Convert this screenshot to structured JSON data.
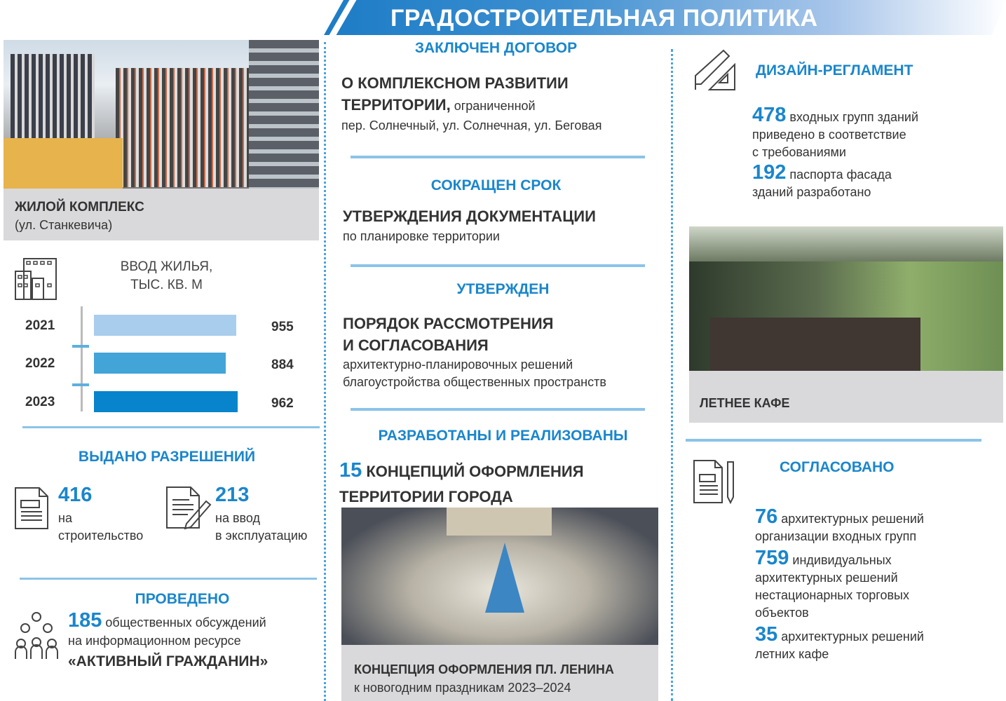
{
  "header": {
    "title": "ГРАДОСТРОИТЕЛЬНАЯ ПОЛИТИКА"
  },
  "colors": {
    "accent": "#1a86cc",
    "bar2021": "#a9cdec",
    "bar2022": "#43a4d8",
    "bar2023": "#0784cb"
  },
  "left": {
    "photo_caption": {
      "title": "ЖИЛОЙ КОМПЛЕКС",
      "subtitle": "(ул. Станкевича)"
    },
    "permits": {
      "heading": "ВЫДАНО РАЗРЕШЕНИЙ",
      "items": [
        {
          "value": "416",
          "line1": "на",
          "line2": "строительство",
          "icon": "document-icon"
        },
        {
          "value": "213",
          "line1": "на ввод",
          "line2": "в эксплуатацию",
          "icon": "document-pen-icon"
        }
      ]
    },
    "hearings": {
      "heading": "ПРОВЕДЕНО",
      "value": "185",
      "line1": " общественных обсуждений",
      "line2": "на информационном ресурсе",
      "line3": "«АКТИВНЫЙ ГРАЖДАНИН»",
      "icon": "people-group-icon"
    }
  },
  "chart_data": {
    "type": "bar",
    "orientation": "horizontal",
    "title": "ВВОД ЖИЛЬЯ, ТЫС. КВ. М",
    "title_line1": "ВВОД ЖИЛЬЯ,",
    "title_line2": "ТЫС. КВ. М",
    "categories": [
      "2021",
      "2022",
      "2023"
    ],
    "values": [
      955,
      884,
      962
    ],
    "value_labels": [
      "955",
      "884",
      "962"
    ],
    "icon": "buildings-icon"
  },
  "middle": {
    "s1": {
      "heading": "ЗАКЛЮЧЕН ДОГОВОР",
      "bold1": "О КОМПЛЕКСНОМ РАЗВИТИИ",
      "bold2": "ТЕРРИТОРИИ,",
      "rest2": " ограниченной",
      "line3": "пер. Солнечный, ул. Солнечная, ул. Беговая"
    },
    "s2": {
      "heading": "СОКРАЩЕН СРОК",
      "bold1": "УТВЕРЖДЕНИЯ ДОКУМЕНТАЦИИ",
      "line2": "по планировке территории"
    },
    "s3": {
      "heading": "УТВЕРЖДЕН",
      "bold1": "ПОРЯДОК РАССМОТРЕНИЯ",
      "bold2": "И СОГЛАСОВАНИЯ",
      "line3": "архитектурно-планировочных решений",
      "line4": "благоустройства общественных пространств"
    },
    "s4": {
      "heading": "РАЗРАБОТАНЫ И РЕАЛИЗОВАНЫ",
      "value": "15",
      "bold1": " КОНЦЕПЦИЙ ОФОРМЛЕНИЯ",
      "bold2": "ТЕРРИТОРИИ ГОРОДА",
      "caption_title": "КОНЦЕПЦИЯ ОФОРМЛЕНИЯ ПЛ. ЛЕНИНА",
      "caption_sub": "к новогодним праздникам 2023–2024"
    }
  },
  "right": {
    "design": {
      "heading": "ДИЗАЙН-РЕГЛАМЕНТ",
      "icon": "ruler-pencil-icon",
      "items": [
        {
          "value": "478",
          "l1": " входных групп зданий",
          "l2": "приведено в соответствие",
          "l3": "с требованиями"
        },
        {
          "value": "192",
          "l1": " паспорта фасада",
          "l2": "зданий разработано"
        }
      ]
    },
    "cafe_caption": "ЛЕТНЕЕ КАФЕ",
    "agreed": {
      "heading": "СОГЛАСОВАНО",
      "icon": "document-pencil-icon",
      "items": [
        {
          "value": "76",
          "l1": " архитектурных решений",
          "l2": "организации входных групп"
        },
        {
          "value": "759",
          "l1": " индивидуальных",
          "l2": "архитектурных решений",
          "l3": "нестационарных торговых",
          "l4": "объектов"
        },
        {
          "value": "35",
          "l1": " архитектурных решений",
          "l2": "летних кафе"
        }
      ]
    }
  }
}
